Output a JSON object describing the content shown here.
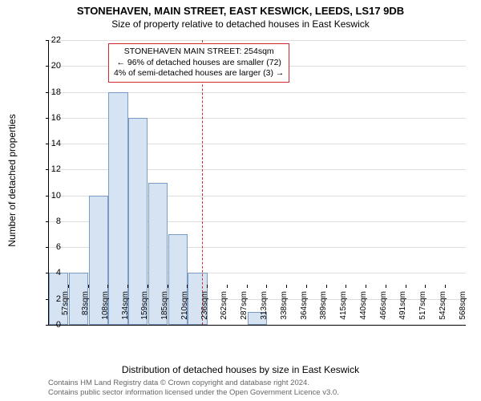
{
  "title": "STONEHAVEN, MAIN STREET, EAST KESWICK, LEEDS, LS17 9DB",
  "subtitle": "Size of property relative to detached houses in East Keswick",
  "chart": {
    "type": "histogram",
    "y_label": "Number of detached properties",
    "x_label": "Distribution of detached houses by size in East Keswick",
    "ylim": [
      0,
      22
    ],
    "ytick_step": 2,
    "background_color": "#ffffff",
    "grid_color": "#dddddd",
    "bar_fill": "#d6e3f3",
    "bar_edge": "#7a9bc4",
    "ref_line_color": "#d62728",
    "ref_line_x": "254sqm",
    "label_fontsize": 12,
    "tick_fontsize": 11,
    "xtick_fontsize": 10,
    "xtick_labels": [
      "57sqm",
      "83sqm",
      "108sqm",
      "134sqm",
      "159sqm",
      "185sqm",
      "210sqm",
      "236sqm",
      "262sqm",
      "287sqm",
      "313sqm",
      "338sqm",
      "364sqm",
      "389sqm",
      "415sqm",
      "440sqm",
      "466sqm",
      "491sqm",
      "517sqm",
      "542sqm",
      "568sqm"
    ],
    "values": [
      4,
      4,
      10,
      18,
      16,
      11,
      7,
      4,
      0,
      0,
      1,
      0,
      0,
      0,
      0,
      0,
      0,
      0,
      0,
      0,
      0
    ]
  },
  "annotation": {
    "line1": "STONEHAVEN MAIN STREET: 254sqm",
    "line2": "← 96% of detached houses are smaller (72)",
    "line3": "4% of semi-detached houses are larger (3) →",
    "border_color": "#d62728",
    "fontsize": 10.5
  },
  "footer": {
    "line1": "Contains HM Land Registry data © Crown copyright and database right 2024.",
    "line2": "Contains public sector information licensed under the Open Government Licence v3.0."
  }
}
